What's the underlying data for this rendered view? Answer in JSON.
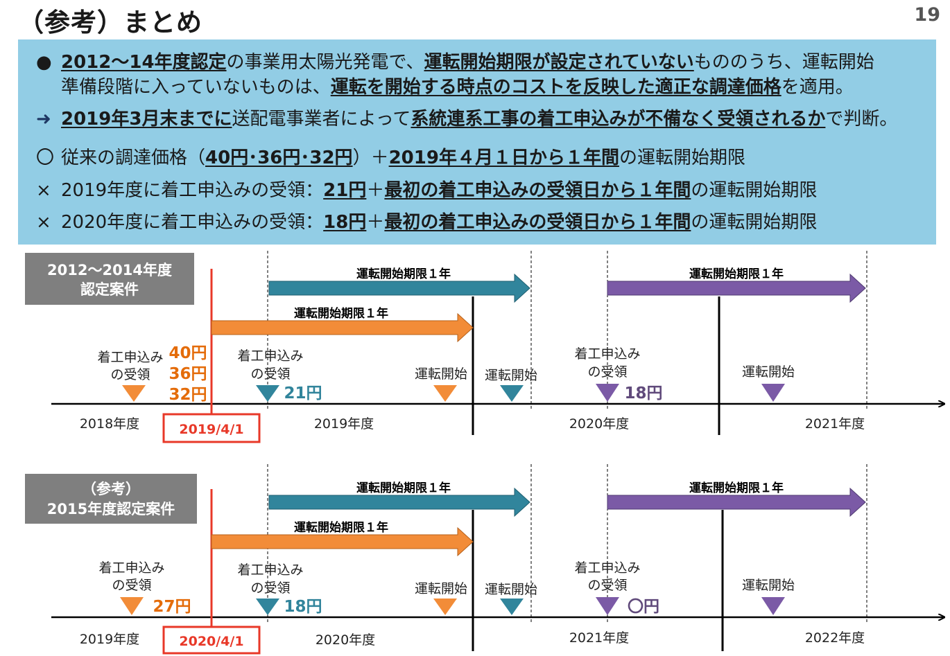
{
  "title": "（参考）まとめ",
  "page_number": "19",
  "summary": {
    "line1": {
      "bullet": "●",
      "p1": "2012～14年度認定",
      "p2": "の事業用太陽光発電で、",
      "p3": "運転開始期限が設定されていない",
      "p4": "もののうち、運転開始"
    },
    "line2": {
      "p1": "準備段階に入っていないものは、",
      "p2": "運転を開始する時点のコストを反映した適正な調達価格",
      "p3": "を適用。"
    },
    "line3": {
      "bullet": "➜",
      "p1": "2019年3月末までに",
      "p2": "送配電事業者によって",
      "p3": "系統連系工事の着工申込みが不備なく受領されるか",
      "p4": "で判断。"
    },
    "line4": {
      "bullet": "〇",
      "p1": "従来の調達価格（",
      "p2": "40円･36円･32円",
      "p3": "）＋",
      "p4": "2019年４月１日から１年間",
      "p5": "の運転開始期限"
    },
    "line5": {
      "bullet": "×",
      "p1": "2019年度に着工申込みの受領：",
      "p2": "21円",
      "p3": "＋",
      "p4": "最初の着工申込みの受領日から１年間",
      "p5": "の運転開始期限"
    },
    "line6": {
      "bullet": "×",
      "p1": "2020年度に着工申込みの受領：",
      "p2": "18円",
      "p3": "＋",
      "p4": "最初の着工申込みの受領日から１年間",
      "p5": "の運転開始期限"
    }
  },
  "timeline1": {
    "label_line1": "2012～2014年度",
    "label_line2": "認定案件",
    "deadline_label": "運転開始期限１年",
    "receipt_label_1": "着工申込み",
    "receipt_label_2": "の受領",
    "start_label": "運転開始",
    "prices_orange": [
      "40円",
      "36円",
      "32円"
    ],
    "price_teal": "21円",
    "price_purple": "18円",
    "cutoff_date": "2019/4/1",
    "years": [
      "2018年度",
      "2019年度",
      "2020年度",
      "2021年度"
    ]
  },
  "timeline2": {
    "label_line1": "（参考）",
    "label_line2": "2015年度認定案件",
    "deadline_label": "運転開始期限１年",
    "receipt_label_1": "着工申込み",
    "receipt_label_2": "の受領",
    "start_label": "運転開始",
    "price_orange": "27円",
    "price_teal": "18円",
    "price_purple": "〇円",
    "cutoff_date": "2020/4/1",
    "years": [
      "2019年度",
      "2020年度",
      "2021年度",
      "2022年度"
    ]
  },
  "colors": {
    "orange": "#f28c38",
    "teal": "#31859c",
    "purple": "#7b5aa6",
    "red": "#e83828",
    "gray_box": "#7f7f7f",
    "summary_bg": "#92cde5",
    "price_orange_text": "#e46c0a",
    "price_teal_text": "#31849b",
    "price_purple_text": "#604a7b"
  }
}
